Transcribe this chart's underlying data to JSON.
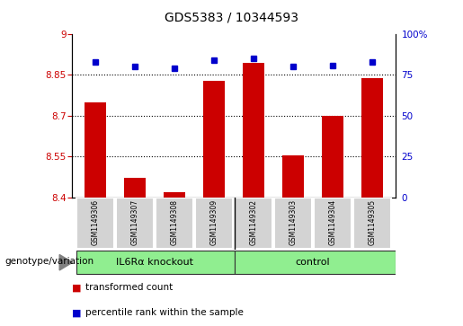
{
  "title": "GDS5383 / 10344593",
  "samples": [
    "GSM1149306",
    "GSM1149307",
    "GSM1149308",
    "GSM1149309",
    "GSM1149302",
    "GSM1149303",
    "GSM1149304",
    "GSM1149305"
  ],
  "transformed_count": [
    8.75,
    8.47,
    8.42,
    8.83,
    8.895,
    8.553,
    8.7,
    8.84
  ],
  "percentile_rank": [
    83,
    80,
    79,
    84,
    85,
    80,
    81,
    83
  ],
  "groups": [
    {
      "label": "IL6Rα knockout",
      "indices": [
        0,
        1,
        2,
        3
      ],
      "color": "#90EE90"
    },
    {
      "label": "control",
      "indices": [
        4,
        5,
        6,
        7
      ],
      "color": "#90EE90"
    }
  ],
  "bar_color": "#CC0000",
  "dot_color": "#0000CC",
  "ylim_left": [
    8.4,
    9.0
  ],
  "ylim_right": [
    0,
    100
  ],
  "yticks_left": [
    8.4,
    8.55,
    8.7,
    8.85,
    9.0
  ],
  "ytick_labels_left": [
    "8.4",
    "8.55",
    "8.7",
    "8.85",
    "9"
  ],
  "yticks_right": [
    0,
    25,
    50,
    75,
    100
  ],
  "ytick_labels_right": [
    "0",
    "25",
    "50",
    "75",
    "100%"
  ],
  "hgrid_values": [
    8.55,
    8.7,
    8.85
  ],
  "plot_bg_color": "#FFFFFF",
  "legend_tc": "transformed count",
  "legend_pr": "percentile rank within the sample",
  "genotype_label": "genotype/variation"
}
